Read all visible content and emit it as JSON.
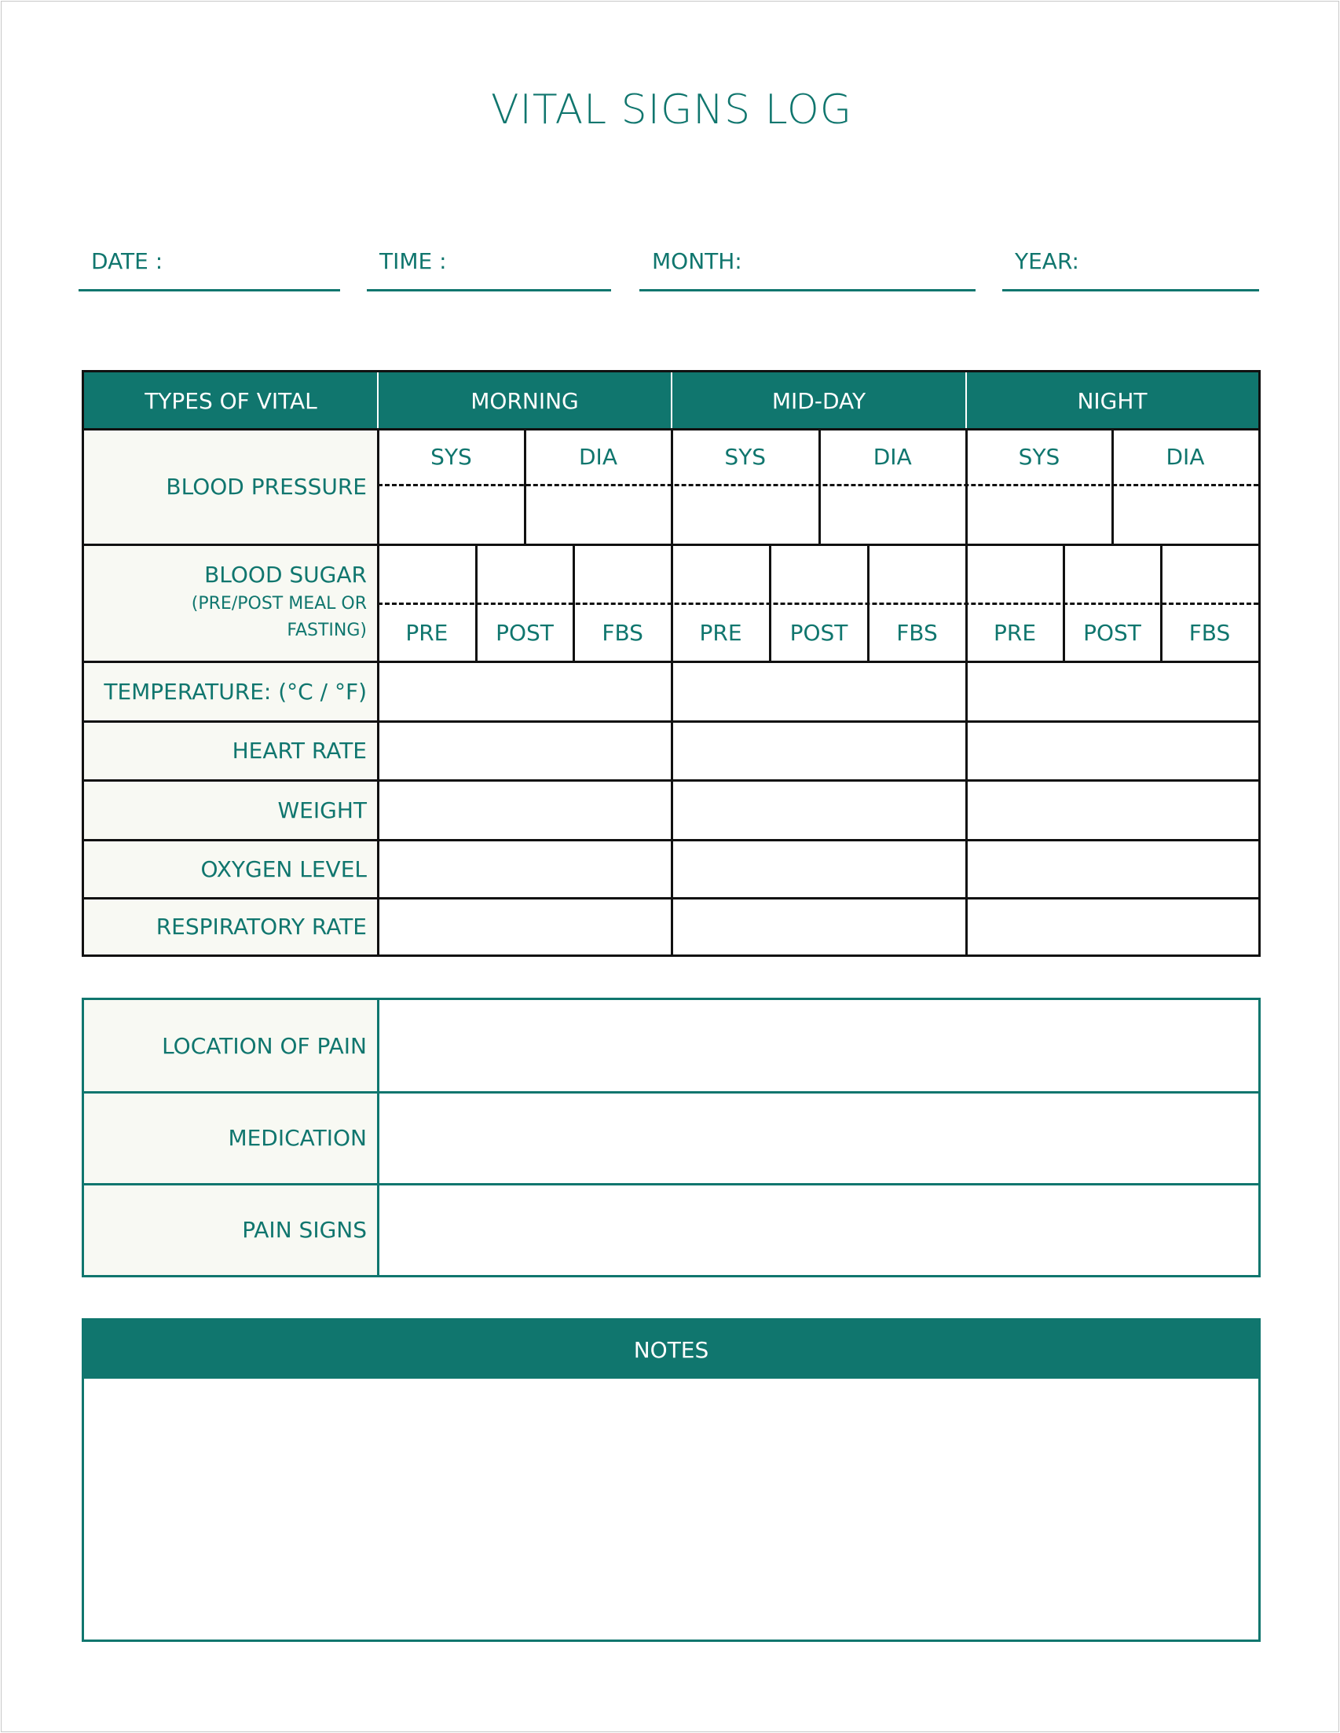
{
  "title": "VITAL SIGNS LOG",
  "fields": [
    {
      "label": "DATE :"
    },
    {
      "label": "TIME :"
    },
    {
      "label": "MONTH:"
    },
    {
      "label": "YEAR:"
    }
  ],
  "vitals": {
    "header": [
      "TYPES OF VITAL",
      "MORNING",
      "MID-DAY",
      "NIGHT"
    ],
    "blood_pressure": {
      "label": "BLOOD PRESSURE",
      "sub": [
        "SYS",
        "DIA"
      ]
    },
    "blood_sugar": {
      "label": "BLOOD SUGAR",
      "note": "(PRE/POST MEAL OR FASTING)",
      "sub": [
        "PRE",
        "POST",
        "FBS"
      ]
    },
    "rows": [
      "TEMPERATURE: (°C / °F)",
      "HEART RATE",
      "WEIGHT",
      "OXYGEN LEVEL",
      "RESPIRATORY RATE"
    ]
  },
  "pain": [
    "LOCATION OF PAIN",
    "MEDICATION",
    "PAIN SIGNS"
  ],
  "notes": {
    "label": "NOTES"
  },
  "colors": {
    "accent": "#10766e",
    "label_bg": "#f8f9f3",
    "border": "#111111"
  }
}
